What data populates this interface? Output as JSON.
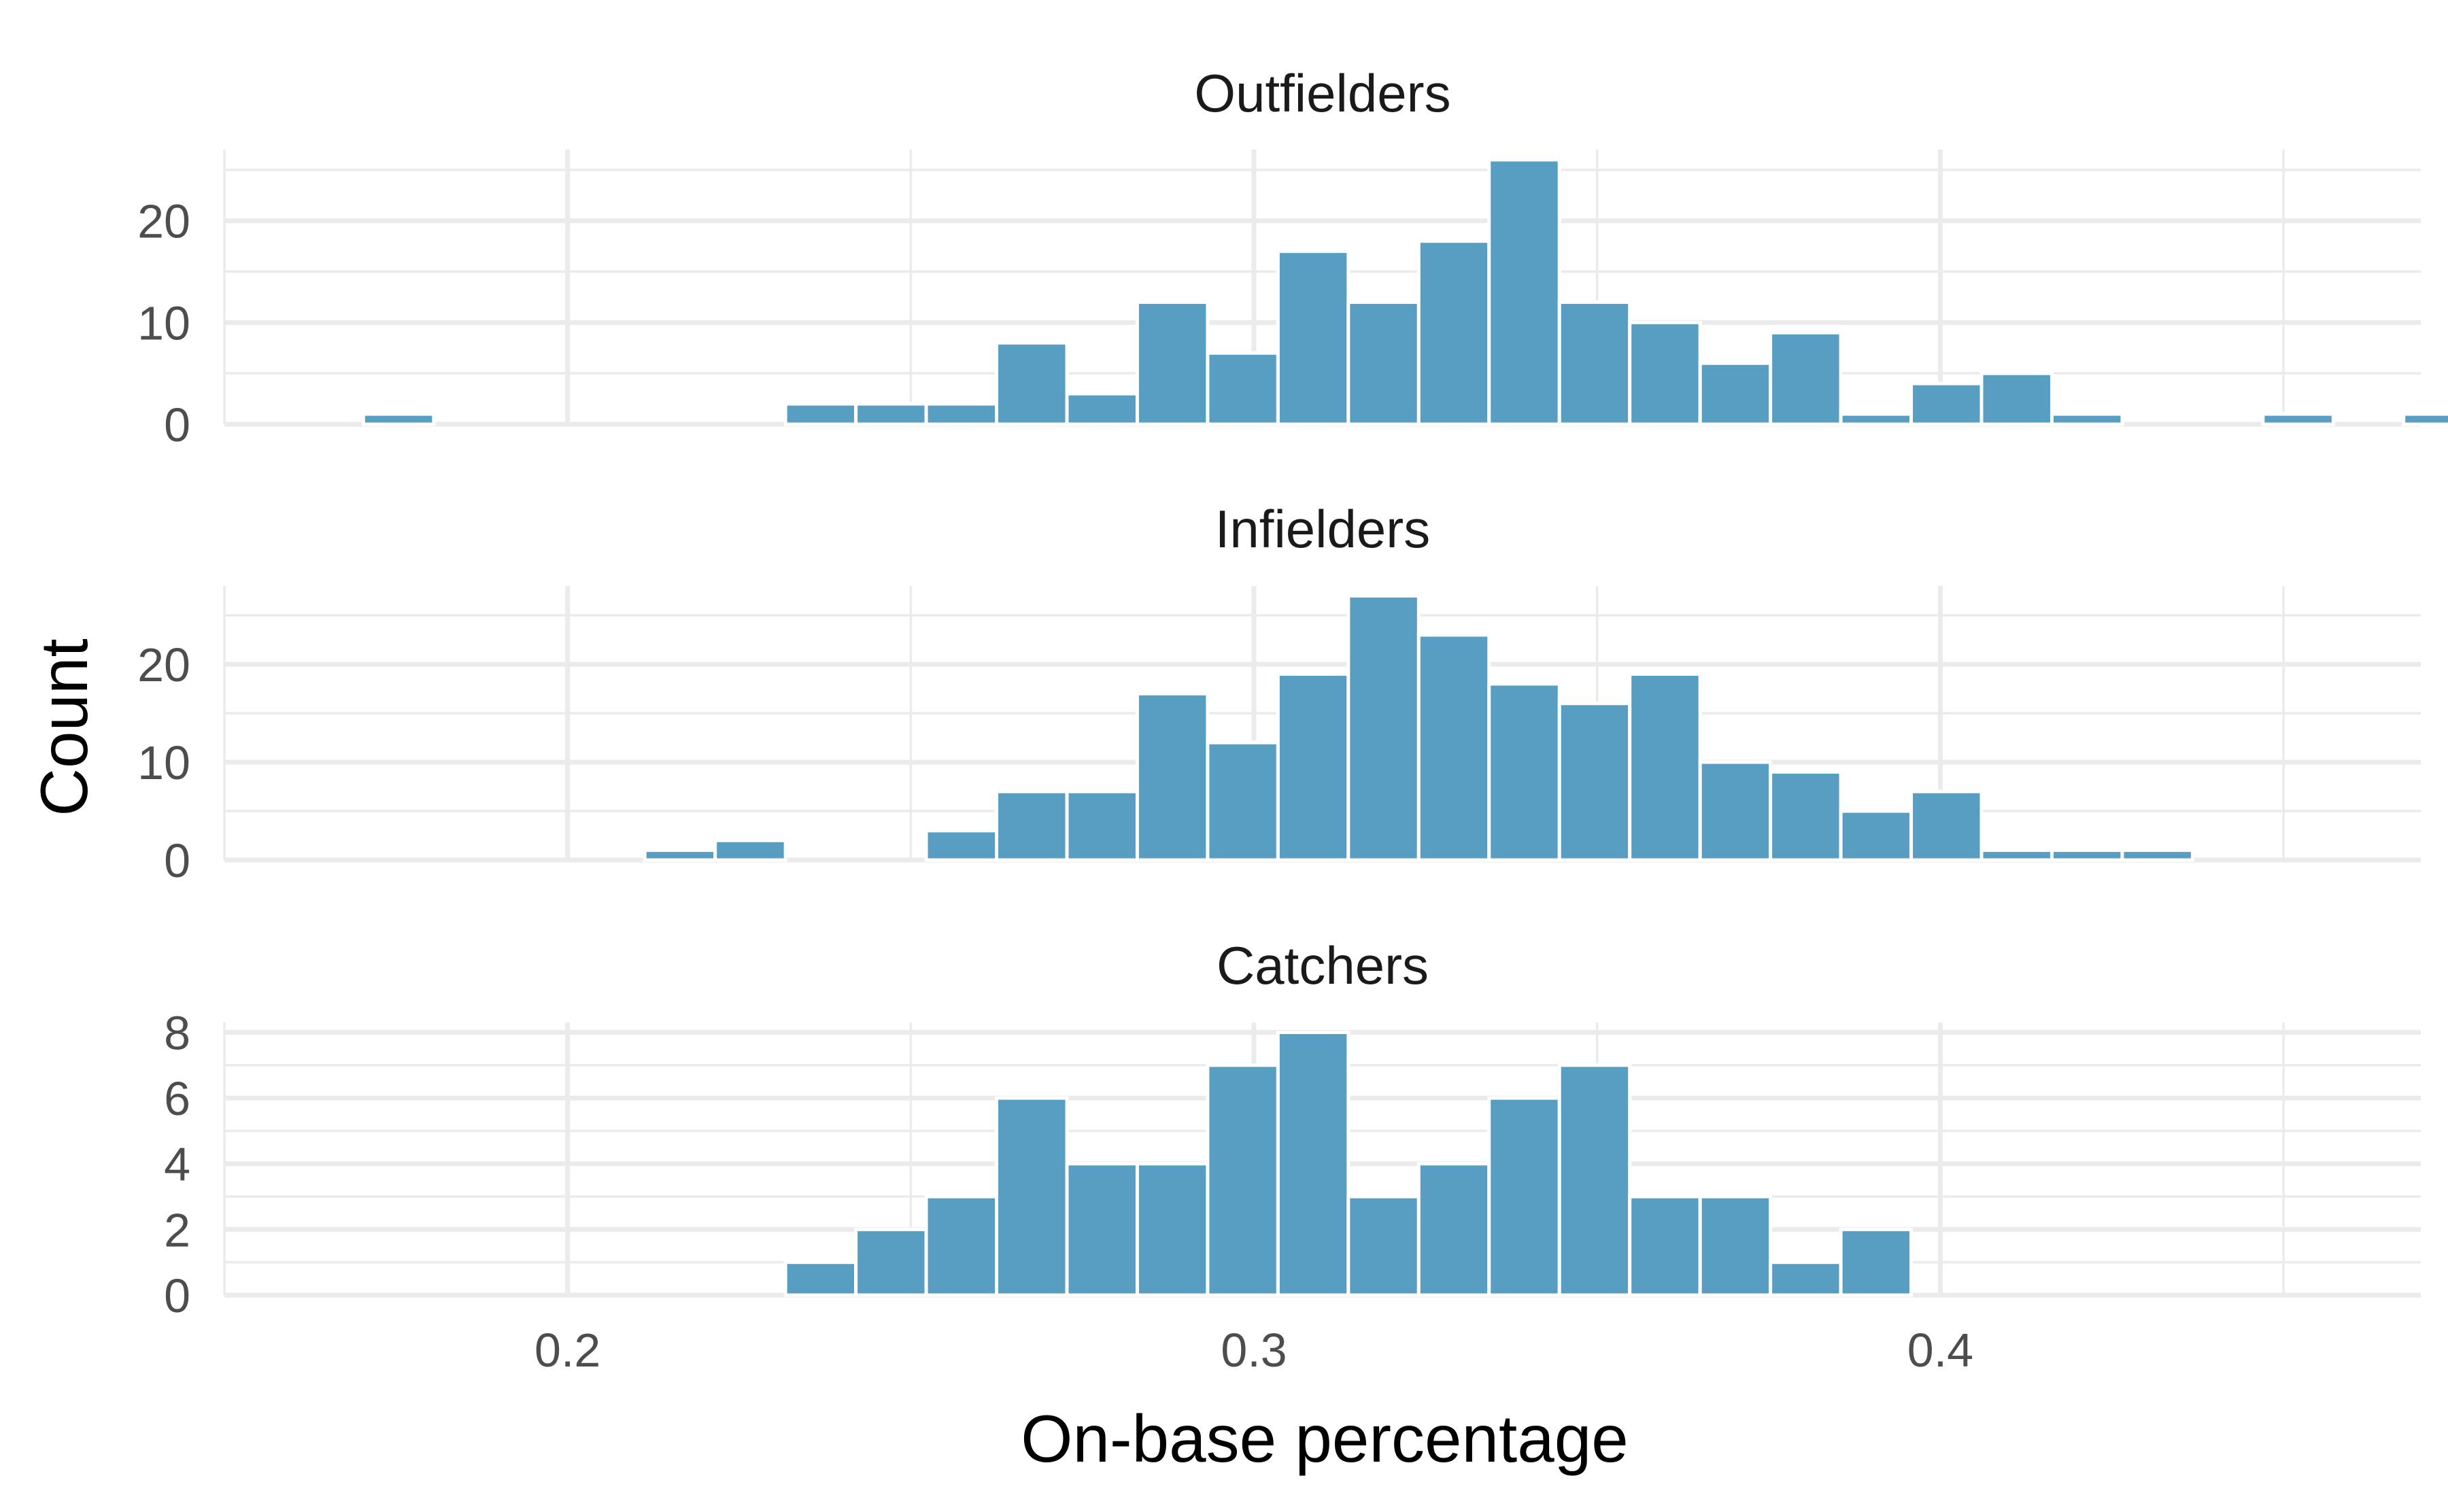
{
  "chart_data": {
    "type": "bar",
    "bar_color": "#579eC2",
    "xlabel": "On-base percentage",
    "ylabel": "Count",
    "xlim": [
      0.15,
      0.47
    ],
    "x_ticks": [
      {
        "value": 0.2,
        "label": "0.2"
      },
      {
        "value": 0.3,
        "label": "0.3"
      },
      {
        "value": 0.4,
        "label": "0.4"
      }
    ],
    "bin_start": 0.16,
    "bin_width": 0.01025,
    "grid": true,
    "panels": [
      {
        "name": "Outfielders",
        "ylim": [
          0,
          27
        ],
        "y_ticks": [
          {
            "value": 0,
            "label": "0"
          },
          {
            "value": 10,
            "label": "10"
          },
          {
            "value": 20,
            "label": "20"
          }
        ],
        "counts": [
          0,
          1,
          0,
          0,
          0,
          0,
          0,
          2,
          2,
          2,
          8,
          3,
          12,
          7,
          17,
          12,
          18,
          26,
          12,
          10,
          6,
          9,
          1,
          4,
          5,
          1,
          0,
          0,
          1,
          0,
          1
        ]
      },
      {
        "name": "Infielders",
        "ylim": [
          0,
          28
        ],
        "y_ticks": [
          {
            "value": 0,
            "label": "0"
          },
          {
            "value": 10,
            "label": "10"
          },
          {
            "value": 20,
            "label": "20"
          }
        ],
        "counts": [
          0,
          0,
          0,
          0,
          0,
          1,
          2,
          0,
          0,
          3,
          7,
          7,
          17,
          12,
          19,
          27,
          23,
          18,
          16,
          19,
          10,
          9,
          5,
          7,
          1,
          1,
          1,
          0,
          0,
          0,
          0
        ]
      },
      {
        "name": "Catchers",
        "ylim": [
          0,
          8.3
        ],
        "y_ticks": [
          {
            "value": 0,
            "label": "0"
          },
          {
            "value": 2,
            "label": "2"
          },
          {
            "value": 4,
            "label": "4"
          },
          {
            "value": 6,
            "label": "6"
          },
          {
            "value": 8,
            "label": "8"
          }
        ],
        "counts": [
          0,
          0,
          0,
          0,
          0,
          0,
          0,
          1,
          2,
          3,
          6,
          4,
          4,
          7,
          8,
          3,
          4,
          6,
          7,
          3,
          3,
          1,
          2,
          0,
          0,
          0,
          0,
          0,
          0,
          0,
          0
        ]
      }
    ]
  }
}
